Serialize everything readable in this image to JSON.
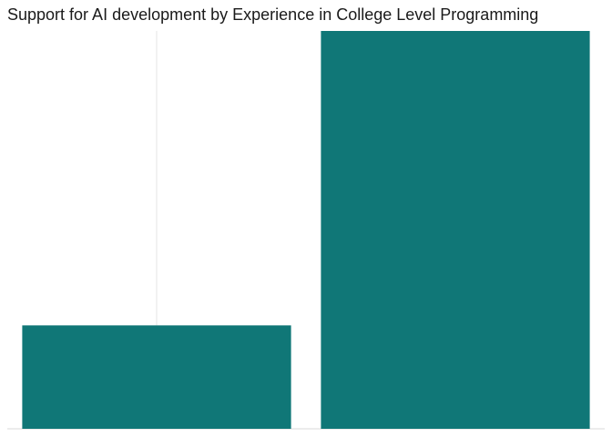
{
  "chart_data": {
    "type": "bar",
    "title": "Support for AI development by Experience in College Level Programming",
    "categories": [
      "",
      ""
    ],
    "values": [
      0.26,
      1.0
    ],
    "ylim": [
      0,
      1.0
    ],
    "xlabel": "",
    "ylabel": "",
    "grid": "vertical-major",
    "bar_color": "#107777",
    "grid_color": "#e5e5e5"
  }
}
